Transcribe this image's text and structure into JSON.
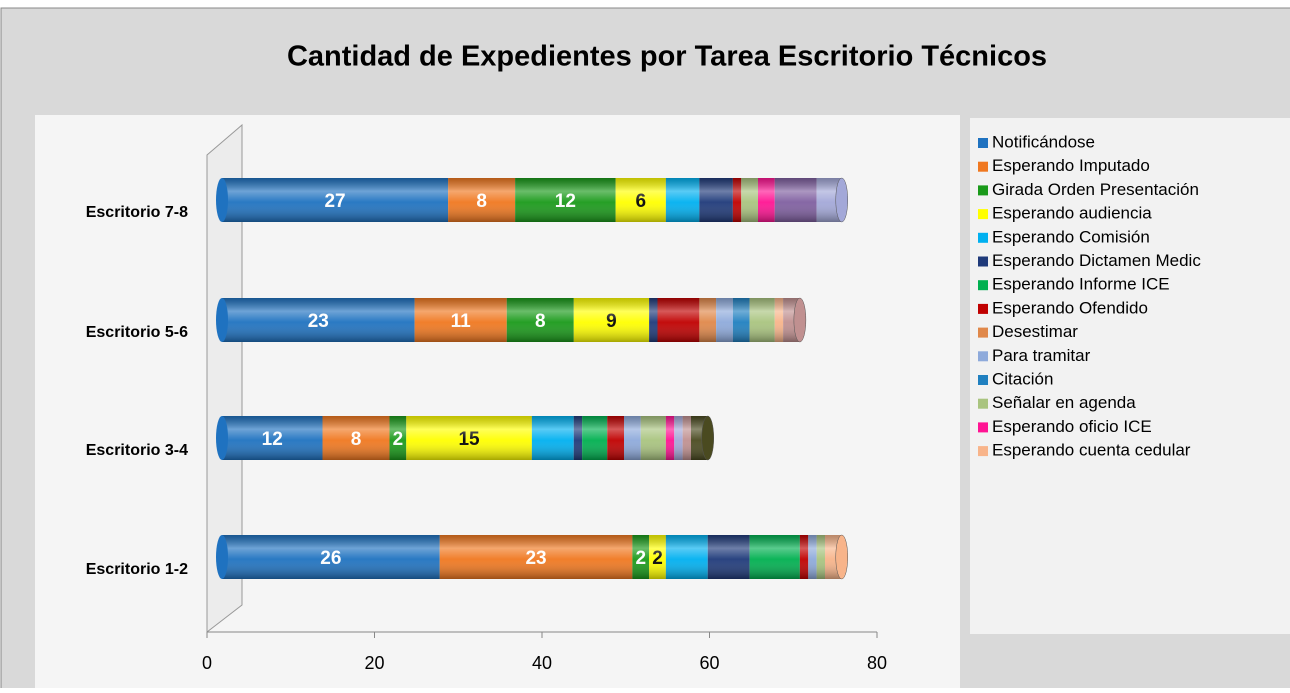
{
  "chart_data": {
    "type": "stacked_barh",
    "title": "Cantidad de Expedientes por Tarea Escritorio Técnicos",
    "categories": [
      "Escritorio 7-8",
      "Escritorio 5-6",
      "Escritorio 3-4",
      "Escritorio 1-2"
    ],
    "xlim": [
      0,
      80
    ],
    "xticks": [
      0,
      20,
      40,
      60,
      80
    ],
    "legend": "right",
    "series": [
      {
        "name": "Notificándose",
        "color": "#1f72c0",
        "values": [
          27,
          23,
          12,
          26
        ],
        "labels": true,
        "label_color": "#ffffff"
      },
      {
        "name": "Esperando Imputado",
        "color": "#f07820",
        "values": [
          8,
          11,
          8,
          23
        ],
        "labels": true,
        "label_color": "#ffffff"
      },
      {
        "name": "Girada Orden Presentación",
        "color": "#1a9a1a",
        "values": [
          12,
          8,
          2,
          2
        ],
        "labels": true,
        "label_color": "#ffffff"
      },
      {
        "name": "Esperando audiencia",
        "color": "#ffff00",
        "values": [
          6,
          9,
          15,
          2
        ],
        "labels": true,
        "label_color": "#000000"
      },
      {
        "name": "Esperando Comisión",
        "color": "#00b0f0",
        "values": [
          4,
          0,
          5,
          5
        ]
      },
      {
        "name": "Esperando Dictamen Medic",
        "color": "#1f3a7a",
        "values": [
          4,
          1,
          1,
          5
        ]
      },
      {
        "name": "Esperando Informe ICE",
        "color": "#00b050",
        "values": [
          0,
          0,
          3,
          6
        ]
      },
      {
        "name": "Esperando Ofendido",
        "color": "#c00000",
        "values": [
          1,
          5,
          2,
          1
        ]
      },
      {
        "name": "Desestimar",
        "color": "#e0884a",
        "values": [
          0,
          2,
          0,
          0
        ]
      },
      {
        "name": "Para tramitar",
        "color": "#8eaadb",
        "values": [
          0,
          2,
          2,
          1
        ]
      },
      {
        "name": "Citación",
        "color": "#2080c0",
        "values": [
          0,
          2,
          0,
          0
        ]
      },
      {
        "name": "Señalar en agenda",
        "color": "#a9c47f",
        "values": [
          2,
          3,
          3,
          1
        ]
      },
      {
        "name": "Esperando oficio ICE",
        "color": "#ff1493",
        "values": [
          2,
          0,
          1,
          0
        ]
      },
      {
        "name": "Esperando cuenta cedular",
        "color": "#f8b48a",
        "values": [
          0,
          1,
          0,
          2
        ]
      },
      {
        "name": null,
        "color": "#7f5fa0",
        "values": [
          5,
          0,
          0,
          0
        ]
      },
      {
        "name": null,
        "color": "#a3a8d8",
        "values": [
          3,
          0,
          1,
          0
        ]
      },
      {
        "name": null,
        "color": "#c09090",
        "values": [
          0,
          2,
          1,
          0
        ]
      },
      {
        "name": null,
        "color": "#4a4a20",
        "values": [
          0,
          0,
          2,
          0
        ]
      }
    ]
  }
}
